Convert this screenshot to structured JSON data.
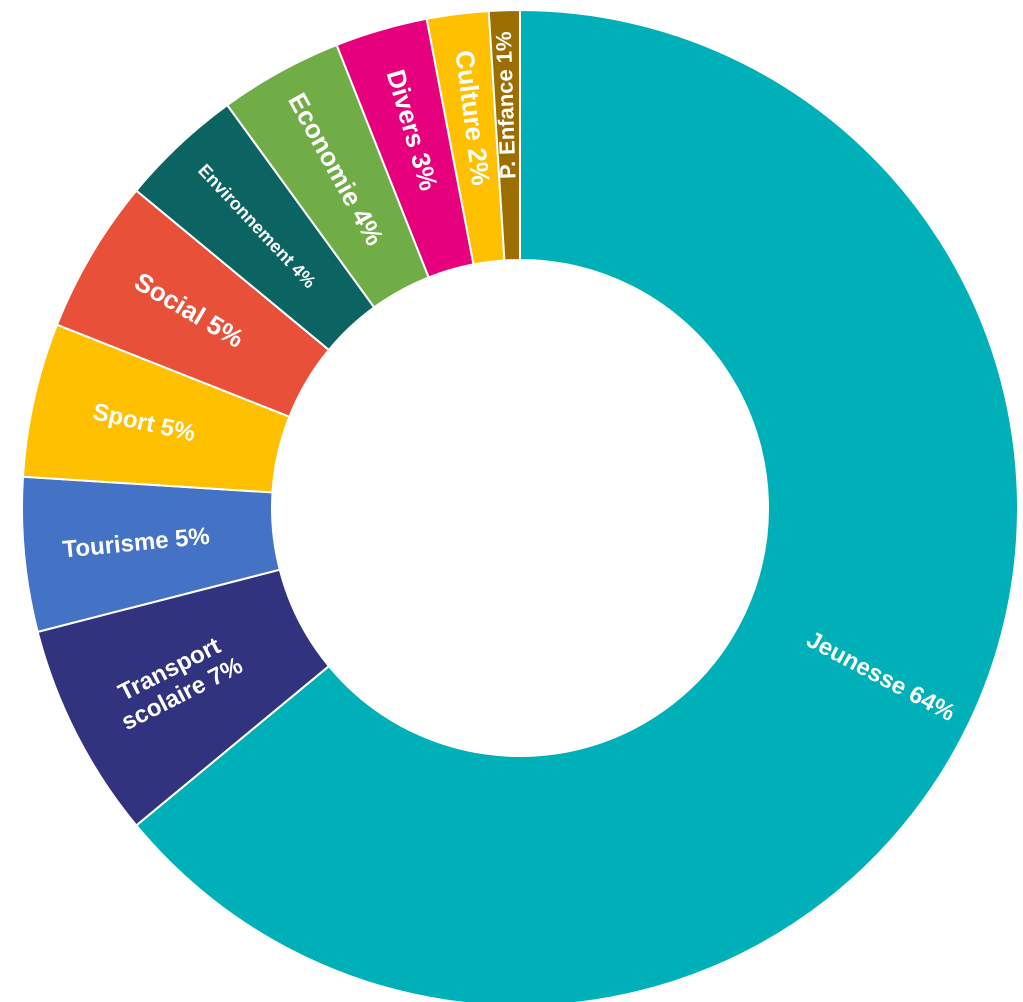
{
  "chart_data": {
    "type": "pie",
    "variant": "donut",
    "slices": [
      {
        "name": "Jeunesse",
        "label": "Jeunesse 64%",
        "value": 64,
        "color": "#00B0B9"
      },
      {
        "name": "Transport scolaire",
        "label": [
          "Transport",
          "scolaire 7%"
        ],
        "value": 7,
        "color": "#32337F"
      },
      {
        "name": "Tourisme",
        "label": "Tourisme 5%",
        "value": 5,
        "color": "#4472C4"
      },
      {
        "name": "Sport",
        "label": "Sport  5%",
        "value": 5,
        "color": "#FFC000"
      },
      {
        "name": "Social",
        "label": "Social 5%",
        "value": 5,
        "color": "#E8503A"
      },
      {
        "name": "Environnement",
        "label": "Environnement 4%",
        "value": 4,
        "color": "#0B6462"
      },
      {
        "name": "Economie",
        "label": "Economie 4%",
        "value": 4,
        "color": "#70AD47"
      },
      {
        "name": "Divers",
        "label": "Divers 3%",
        "value": 3,
        "color": "#E6007E"
      },
      {
        "name": "Culture",
        "label": "Culture 2%",
        "value": 2,
        "color": "#FFC000"
      },
      {
        "name": "P. Enfance",
        "label": "P. Enfance 1%",
        "value": 1,
        "color": "#9C6E00"
      }
    ]
  }
}
